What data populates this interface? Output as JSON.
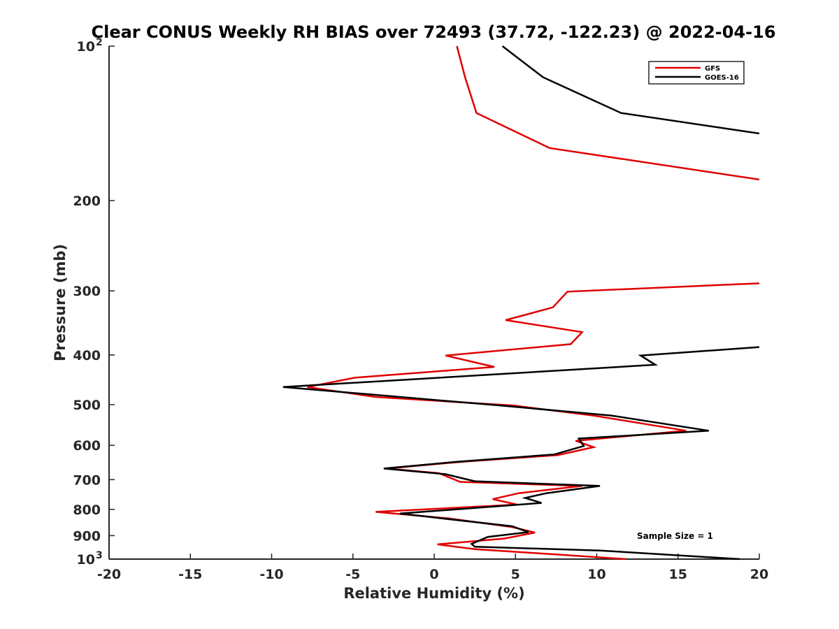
{
  "chart_data": {
    "type": "line",
    "title": "Clear CONUS Weekly RH BIAS over 72493 (37.72, -122.23) @ 2022-04-16",
    "xlabel": "Relative Humidity (%)",
    "ylabel": "Pressure (mb)",
    "xlim": [
      -20,
      20
    ],
    "ylim": [
      100,
      1000
    ],
    "yscale": "log",
    "y_reversed": true,
    "grid": false,
    "legend_location": "top-right",
    "x_ticks": [
      -20,
      -15,
      -10,
      -5,
      0,
      5,
      10,
      15,
      20
    ],
    "x_tick_labels": [
      "-20",
      "-15",
      "-10",
      "-5",
      "0",
      "5",
      "10",
      "15",
      "20"
    ],
    "y_ticks": [
      100,
      200,
      300,
      400,
      500,
      600,
      700,
      800,
      900,
      1000
    ],
    "y_tick_labels": [
      {
        "base": "10",
        "exp": "2"
      },
      {
        "base": "200",
        "exp": ""
      },
      {
        "base": "300",
        "exp": ""
      },
      {
        "base": "400",
        "exp": ""
      },
      {
        "base": "500",
        "exp": ""
      },
      {
        "base": "600",
        "exp": ""
      },
      {
        "base": "700",
        "exp": ""
      },
      {
        "base": "800",
        "exp": ""
      },
      {
        "base": "900",
        "exp": ""
      },
      {
        "base": "10",
        "exp": "3"
      }
    ],
    "annotation": "Sample Size = 1",
    "series": [
      {
        "name": "GFS",
        "color": "#e00000",
        "segments": [
          [
            [
              1.4,
              100
            ],
            [
              1.9,
              115
            ],
            [
              2.6,
              135
            ],
            [
              7.1,
              158
            ],
            [
              20,
              182
            ]
          ],
          [
            [
              20,
              290
            ],
            [
              8.2,
              301
            ],
            [
              7.3,
              323
            ],
            [
              4.4,
              342
            ],
            [
              9.1,
              361
            ],
            [
              8.4,
              381
            ],
            [
              0.7,
              401
            ],
            [
              3.7,
              422
            ],
            [
              -4.9,
              443
            ],
            [
              -7.8,
              462
            ],
            [
              -3.6,
              483
            ],
            [
              4.9,
              502
            ],
            [
              9.8,
              525
            ],
            [
              15.5,
              562
            ],
            [
              8.7,
              588
            ],
            [
              9.8,
              605
            ],
            [
              7.6,
              627
            ],
            [
              1.7,
              646
            ],
            [
              -2.9,
              666
            ],
            [
              0.3,
              680
            ],
            [
              1.6,
              707
            ],
            [
              9.1,
              720
            ],
            [
              5.2,
              744
            ],
            [
              3.6,
              764
            ],
            [
              5.1,
              783
            ],
            [
              -3.6,
              809
            ],
            [
              0.9,
              833
            ],
            [
              4.8,
              866
            ],
            [
              6.2,
              888
            ],
            [
              4.3,
              912
            ],
            [
              0.2,
              936
            ],
            [
              2.5,
              956
            ],
            [
              11.8,
              1000
            ]
          ]
        ]
      },
      {
        "name": "GOES-16",
        "color": "#000000",
        "segments": [
          [
            [
              4.2,
              100
            ],
            [
              6.7,
              115
            ],
            [
              11.5,
              135
            ],
            [
              20,
              148
            ]
          ],
          [
            [
              20,
              386
            ],
            [
              12.7,
              401
            ],
            [
              13.6,
              418
            ],
            [
              -9.3,
              462
            ],
            [
              -2.1,
              483
            ],
            [
              4.1,
              502
            ],
            [
              10.9,
              525
            ],
            [
              16.9,
              562
            ],
            [
              8.9,
              582
            ],
            [
              9.2,
              602
            ],
            [
              7.4,
              625
            ],
            [
              1.4,
              646
            ],
            [
              -3.1,
              666
            ],
            [
              0.7,
              683
            ],
            [
              2.5,
              705
            ],
            [
              10.2,
              720
            ],
            [
              6.9,
              744
            ],
            [
              5.6,
              760
            ],
            [
              6.6,
              777
            ],
            [
              -2.1,
              815
            ],
            [
              0.5,
              833
            ],
            [
              4.8,
              863
            ],
            [
              5.8,
              886
            ],
            [
              3.3,
              905
            ],
            [
              2.3,
              934
            ],
            [
              2.5,
              946
            ],
            [
              10.2,
              962
            ],
            [
              18.8,
              1000
            ]
          ]
        ]
      }
    ]
  }
}
